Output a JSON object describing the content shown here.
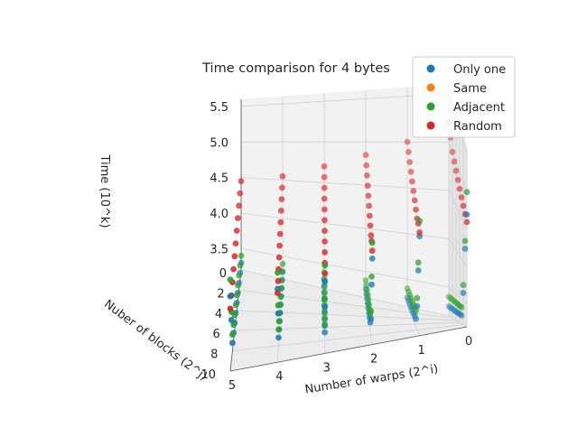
{
  "chart_data": {
    "type": "scatter",
    "projection": "3d",
    "title": "Time comparison for 4 bytes",
    "xlabel": "Number of warps (2^i)",
    "ylabel": "Nuber of blocks (2^j)",
    "zlabel": "Time (10^k)",
    "x_ticks": [
      "0",
      "1",
      "2",
      "3",
      "4",
      "5"
    ],
    "y_ticks": [
      "0",
      "2",
      "4",
      "6",
      "8",
      "10"
    ],
    "z_ticks": [
      "3.5",
      "4.0",
      "4.5",
      "5.0",
      "5.5"
    ],
    "xlim": [
      0,
      5
    ],
    "ylim": [
      0,
      10
    ],
    "zlim": [
      3.2,
      5.6
    ],
    "grid": true,
    "legend_position": "top-right",
    "colors": {
      "only_one": "#1f77b4",
      "same": "#ff7f0e",
      "adjacent": "#2ca02c",
      "random": "#d62728"
    },
    "series": [
      {
        "name": "Only one",
        "color": "#1f77b4",
        "x": [
          5,
          5,
          5,
          5,
          5,
          5,
          5,
          5,
          5,
          5,
          5,
          4,
          4,
          4,
          4,
          4,
          4,
          4,
          4,
          4,
          4,
          4,
          3,
          3,
          3,
          3,
          3,
          3,
          3,
          3,
          3,
          3,
          3,
          2,
          2,
          2,
          2,
          2,
          2,
          2,
          2,
          2,
          2,
          2,
          1,
          1,
          1,
          1,
          1,
          1,
          1,
          1,
          1,
          1,
          1,
          0,
          0,
          0,
          0,
          0,
          0,
          0,
          0,
          0,
          0,
          0
        ],
        "y": [
          0,
          1,
          2,
          3,
          4,
          5,
          6,
          7,
          8,
          9,
          10,
          0,
          1,
          2,
          3,
          4,
          5,
          6,
          7,
          8,
          9,
          10,
          0,
          1,
          2,
          3,
          4,
          5,
          6,
          7,
          8,
          9,
          10,
          0,
          1,
          2,
          3,
          4,
          5,
          6,
          7,
          8,
          9,
          10,
          0,
          1,
          2,
          3,
          4,
          5,
          6,
          7,
          8,
          9,
          10,
          0,
          1,
          2,
          3,
          4,
          5,
          6,
          7,
          8,
          9,
          10
        ],
        "z": [
          3.3,
          3.3,
          3.3,
          3.3,
          3.3,
          3.3,
          3.3,
          3.3,
          3.3,
          3.7,
          4.1,
          3.3,
          3.3,
          3.3,
          3.3,
          3.3,
          3.3,
          3.3,
          3.3,
          3.3,
          3.7,
          4.1,
          3.3,
          3.3,
          3.3,
          3.3,
          3.3,
          3.3,
          3.3,
          3.3,
          3.3,
          3.7,
          4.1,
          3.3,
          3.3,
          3.3,
          3.3,
          3.3,
          3.3,
          3.3,
          3.3,
          3.4,
          3.9,
          4.3,
          3.3,
          3.3,
          3.3,
          3.3,
          3.3,
          3.3,
          3.3,
          3.3,
          3.5,
          4.0,
          4.5,
          3.3,
          3.3,
          3.3,
          3.3,
          3.3,
          3.3,
          3.3,
          3.3,
          3.6,
          4.2,
          4.7
        ]
      },
      {
        "name": "Same",
        "color": "#ff7f0e",
        "x": [],
        "y": [],
        "z": []
      },
      {
        "name": "Adjacent",
        "color": "#2ca02c",
        "x": [
          5,
          5,
          5,
          5,
          5,
          5,
          5,
          5,
          5,
          5,
          5,
          4,
          4,
          4,
          4,
          4,
          4,
          4,
          4,
          4,
          4,
          4,
          3,
          3,
          3,
          3,
          3,
          3,
          3,
          3,
          3,
          3,
          3,
          2,
          2,
          2,
          2,
          2,
          2,
          2,
          2,
          2,
          2,
          2,
          1,
          1,
          1,
          1,
          1,
          1,
          1,
          1,
          1,
          1,
          1,
          0,
          0,
          0,
          0,
          0,
          0,
          0,
          0,
          0,
          0,
          0
        ],
        "y": [
          0,
          1,
          2,
          3,
          4,
          5,
          6,
          7,
          8,
          9,
          10,
          0,
          1,
          2,
          3,
          4,
          5,
          6,
          7,
          8,
          9,
          10,
          0,
          1,
          2,
          3,
          4,
          5,
          6,
          7,
          8,
          9,
          10,
          0,
          1,
          2,
          3,
          4,
          5,
          6,
          7,
          8,
          9,
          10,
          0,
          1,
          2,
          3,
          4,
          5,
          6,
          7,
          8,
          9,
          10,
          0,
          1,
          2,
          3,
          4,
          5,
          6,
          7,
          8,
          9,
          10
        ],
        "z": [
          3.4,
          3.4,
          3.4,
          3.4,
          3.4,
          3.4,
          3.4,
          3.4,
          3.4,
          3.8,
          4.3,
          3.4,
          3.4,
          3.4,
          3.4,
          3.4,
          3.4,
          3.4,
          3.4,
          3.4,
          3.8,
          4.3,
          3.4,
          3.4,
          3.4,
          3.4,
          3.4,
          3.4,
          3.4,
          3.4,
          3.4,
          3.8,
          4.3,
          3.4,
          3.4,
          3.4,
          3.4,
          3.4,
          3.4,
          3.4,
          3.4,
          3.5,
          4.0,
          4.5,
          3.4,
          3.4,
          3.4,
          3.4,
          3.4,
          3.4,
          3.4,
          3.4,
          3.6,
          4.1,
          4.7,
          3.4,
          3.4,
          3.4,
          3.4,
          3.4,
          3.4,
          3.4,
          3.4,
          3.7,
          4.3,
          5.0
        ]
      },
      {
        "name": "Random",
        "color": "#d62728",
        "x": [
          5,
          5,
          5,
          5,
          5,
          5,
          5,
          5,
          5,
          5,
          5,
          4,
          4,
          4,
          4,
          4,
          4,
          4,
          4,
          4,
          4,
          4,
          3,
          3,
          3,
          3,
          3,
          3,
          3,
          3,
          3,
          3,
          3,
          2,
          2,
          2,
          2,
          2,
          2,
          2,
          2,
          2,
          2,
          2,
          1,
          1,
          1,
          1,
          1,
          1,
          1,
          1,
          1,
          1,
          1,
          0,
          0,
          0,
          0,
          0,
          0,
          0,
          0,
          0,
          0,
          0
        ],
        "y": [
          0,
          1,
          2,
          3,
          4,
          5,
          6,
          7,
          8,
          9,
          10,
          0,
          1,
          2,
          3,
          4,
          5,
          6,
          7,
          8,
          9,
          10,
          0,
          1,
          2,
          3,
          4,
          5,
          6,
          7,
          8,
          9,
          10,
          0,
          1,
          2,
          3,
          4,
          5,
          6,
          7,
          8,
          9,
          10,
          0,
          1,
          2,
          3,
          4,
          5,
          6,
          7,
          8,
          9,
          10,
          0,
          1,
          2,
          3,
          4,
          5,
          6,
          7,
          8,
          9,
          10
        ],
        "z": [
          4.45,
          4.4,
          4.35,
          4.3,
          4.25,
          4.2,
          4.15,
          4.1,
          4.05,
          4.0,
          3.95,
          4.55,
          4.5,
          4.45,
          4.4,
          4.35,
          4.3,
          4.25,
          4.2,
          4.15,
          4.1,
          4.05,
          4.7,
          4.65,
          4.6,
          4.55,
          4.5,
          4.45,
          4.4,
          4.35,
          4.3,
          4.25,
          4.2,
          4.85,
          4.8,
          4.75,
          4.7,
          4.65,
          4.6,
          4.55,
          4.5,
          4.45,
          4.45,
          4.4,
          5.0,
          4.95,
          4.9,
          4.85,
          4.8,
          4.75,
          4.7,
          4.65,
          4.6,
          4.6,
          4.55,
          5.2,
          5.1,
          5.0,
          4.95,
          4.9,
          4.85,
          4.8,
          4.75,
          4.7,
          4.65,
          4.6
        ]
      }
    ]
  }
}
